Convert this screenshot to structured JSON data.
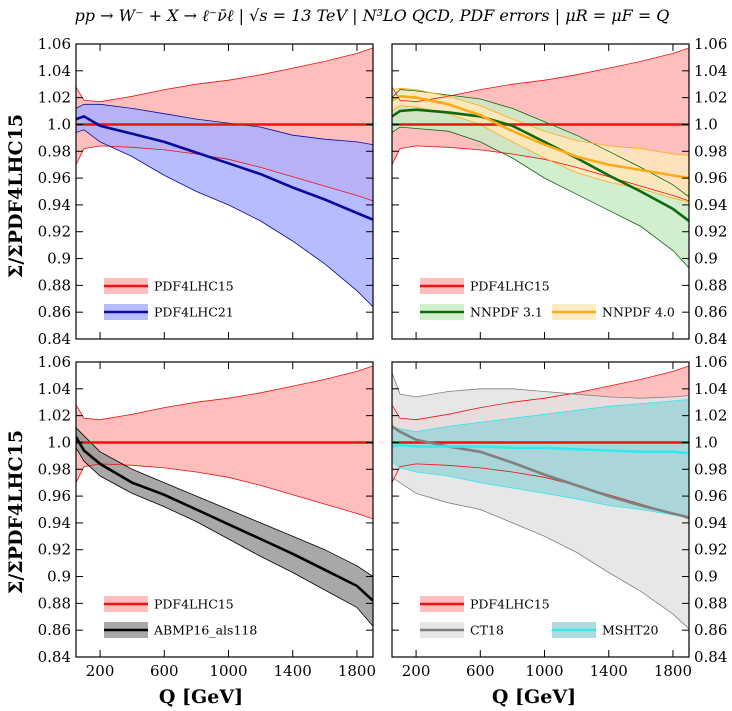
{
  "title": "pp → W⁻ + X → ℓ⁻ν̄ℓ | √s = 13 TeV | N³LO QCD, PDF errors | μR = μF = Q",
  "chart_data": {
    "type": "area",
    "ylabel": "Σ/ΣPDF4LHC15",
    "xlabel": "Q [GeV]",
    "xlim": [
      50,
      1900
    ],
    "ylim": [
      0.84,
      1.06
    ],
    "xticks": [
      "200",
      "600",
      "1000",
      "1400",
      "1800"
    ],
    "yticks": [
      "0.84",
      "0.86",
      "0.88",
      "0.9",
      "0.92",
      "0.94",
      "0.96",
      "0.98",
      "1.0",
      "1.02",
      "1.04",
      "1.06"
    ],
    "x": [
      50,
      100,
      200,
      400,
      600,
      800,
      1000,
      1200,
      1400,
      1600,
      1800,
      1900
    ],
    "reference": {
      "name": "PDF4LHC15",
      "color": "#ee1111",
      "fill": "#ffb3b3",
      "central": [
        1.0,
        1.0,
        1.0,
        1.0,
        1.0,
        1.0,
        1.0,
        1.0,
        1.0,
        1.0,
        1.0,
        1.0
      ],
      "upper": [
        1.028,
        1.018,
        1.017,
        1.021,
        1.026,
        1.03,
        1.033,
        1.037,
        1.042,
        1.047,
        1.053,
        1.057
      ],
      "lower": [
        0.97,
        0.982,
        0.984,
        0.983,
        0.981,
        0.978,
        0.974,
        0.968,
        0.961,
        0.954,
        0.947,
        0.943
      ]
    },
    "panels": [
      {
        "series": [
          {
            "name": "PDF4LHC21",
            "color": "#0a0a99",
            "fill": "#aab0ff",
            "central": [
              1.004,
              1.006,
              0.999,
              0.993,
              0.987,
              0.979,
              0.971,
              0.963,
              0.953,
              0.944,
              0.934,
              0.929
            ],
            "upper": [
              1.012,
              1.015,
              1.015,
              1.012,
              1.008,
              1.004,
              1.001,
              0.998,
              0.992,
              0.989,
              0.987,
              0.985
            ],
            "lower": [
              0.994,
              0.996,
              0.987,
              0.976,
              0.962,
              0.95,
              0.94,
              0.928,
              0.913,
              0.896,
              0.876,
              0.864
            ]
          }
        ],
        "legend": [
          {
            "series": "PDF4LHC15",
            "label": "PDF4LHC15"
          },
          {
            "series": "PDF4LHC21",
            "label": "PDF4LHC21"
          }
        ]
      },
      {
        "series": [
          {
            "name": "NNPDF 3.1",
            "color": "#0f6a0f",
            "fill": "#c9ecc5",
            "central": [
              1.006,
              1.01,
              1.011,
              1.009,
              1.006,
              0.999,
              0.987,
              0.975,
              0.962,
              0.95,
              0.937,
              0.928
            ],
            "upper": [
              1.02,
              1.026,
              1.025,
              1.022,
              1.019,
              1.012,
              1.002,
              0.992,
              0.98,
              0.968,
              0.955,
              0.946
            ],
            "lower": [
              0.994,
              0.998,
              0.997,
              0.995,
              0.987,
              0.975,
              0.96,
              0.948,
              0.936,
              0.924,
              0.906,
              0.893
            ]
          },
          {
            "name": "NNPDF 4.0",
            "color": "#ffaa1a",
            "fill": "#ffe9bb",
            "central": [
              1.018,
              1.021,
              1.02,
              1.015,
              1.007,
              0.995,
              0.985,
              0.976,
              0.97,
              0.966,
              0.962,
              0.96
            ],
            "upper": [
              1.026,
              1.027,
              1.026,
              1.021,
              1.014,
              1.004,
              0.995,
              0.988,
              0.984,
              0.982,
              0.978,
              0.977
            ],
            "lower": [
              1.01,
              1.014,
              1.013,
              1.008,
              1.0,
              0.987,
              0.975,
              0.964,
              0.957,
              0.952,
              0.945,
              0.942
            ]
          }
        ],
        "legend": [
          {
            "series": "PDF4LHC15",
            "label": "PDF4LHC15"
          },
          {
            "series": "NNPDF 3.1",
            "label": "NNPDF 3.1"
          },
          {
            "series": "NNPDF 4.0",
            "label": "NNPDF 4.0"
          }
        ]
      },
      {
        "series": [
          {
            "name": "ABMP16_als118",
            "color": "#000000",
            "fill": "#999999",
            "central": [
              1.004,
              0.994,
              0.984,
              0.97,
              0.961,
              0.95,
              0.939,
              0.928,
              0.917,
              0.905,
              0.893,
              0.882
            ],
            "upper": [
              1.011,
              1.005,
              0.993,
              0.98,
              0.97,
              0.96,
              0.95,
              0.94,
              0.93,
              0.92,
              0.908,
              0.9
            ],
            "lower": [
              0.996,
              0.986,
              0.975,
              0.962,
              0.952,
              0.941,
              0.928,
              0.915,
              0.903,
              0.89,
              0.877,
              0.863
            ]
          }
        ],
        "legend": [
          {
            "series": "PDF4LHC15",
            "label": "PDF4LHC15"
          },
          {
            "series": "ABMP16_als118",
            "label": "ABMP16_als118"
          }
        ]
      },
      {
        "series": [
          {
            "name": "CT18",
            "color": "#808080",
            "fill": "#e3e3e3",
            "central": [
              1.012,
              1.008,
              1.002,
              0.997,
              0.993,
              0.985,
              0.976,
              0.968,
              0.96,
              0.953,
              0.947,
              0.944
            ],
            "upper": [
              1.052,
              1.036,
              1.034,
              1.038,
              1.04,
              1.04,
              1.038,
              1.036,
              1.034,
              1.033,
              1.034,
              1.035
            ],
            "lower": [
              0.974,
              0.97,
              0.962,
              0.955,
              0.95,
              0.94,
              0.93,
              0.918,
              0.903,
              0.889,
              0.872,
              0.861
            ]
          },
          {
            "name": "MSHT20",
            "color": "#33e8ee",
            "fill": "#9fd5d8",
            "central": [
              0.997,
              0.998,
              0.997,
              0.997,
              0.997,
              0.996,
              0.996,
              0.995,
              0.994,
              0.993,
              0.993,
              0.992
            ],
            "upper": [
              1.012,
              1.01,
              1.008,
              1.012,
              1.015,
              1.018,
              1.021,
              1.024,
              1.027,
              1.029,
              1.031,
              1.032
            ],
            "lower": [
              0.986,
              0.981,
              0.978,
              0.975,
              0.97,
              0.966,
              0.962,
              0.958,
              0.953,
              0.95,
              0.946,
              0.944
            ]
          }
        ],
        "legend": [
          {
            "series": "PDF4LHC15",
            "label": "PDF4LHC15"
          },
          {
            "series": "CT18",
            "label": "CT18"
          },
          {
            "series": "MSHT20",
            "label": "MSHT20"
          }
        ]
      }
    ]
  }
}
